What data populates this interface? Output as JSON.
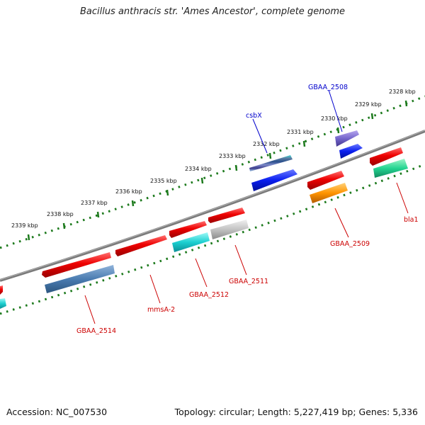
{
  "title": "Bacillus anthracis str. 'Ames Ancestor', complete genome",
  "footer": {
    "accession": "Accession: NC_007530",
    "summary": "Topology: circular; Length: 5,227,419 bp; Genes: 5,336"
  },
  "colors": {
    "backbone": "#808080",
    "tick": "#1d7a1d",
    "label_top": "#0000cc",
    "label_bottom": "#cc0000"
  },
  "ticks": [
    "2328 kbp",
    "2329 kbp",
    "2330 kbp",
    "2331 kbp",
    "2332 kbp",
    "2333 kbp",
    "2334 kbp",
    "2335 kbp",
    "2336 kbp",
    "2337 kbp",
    "2338 kbp",
    "2339 kbp"
  ],
  "labels": {
    "top": [
      "GBAA_2508",
      "csbX"
    ],
    "bottom": [
      "bla1",
      "GBAA_2509",
      "GBAA_2511",
      "GBAA_2512",
      "mmsA-2",
      "GBAA_2514"
    ]
  }
}
